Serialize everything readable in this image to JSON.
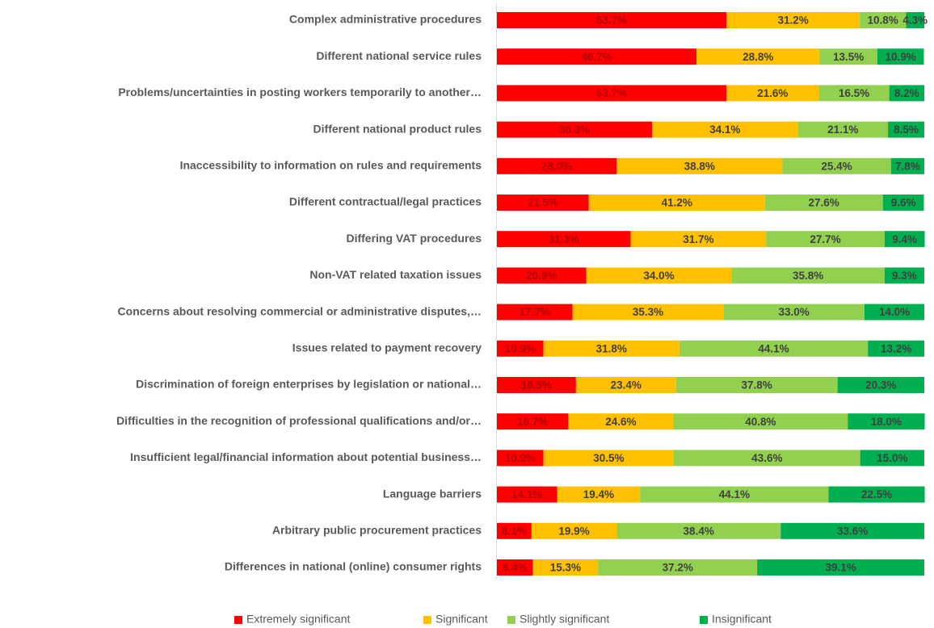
{
  "chart_data": {
    "type": "stacked-barh",
    "categories": [
      "Complex administrative procedures",
      "Different national service rules",
      "Problems/uncertainties in posting workers temporarily to another…",
      "Different national product rules",
      "Inaccessibility to information on rules and requirements",
      "Different contractual/legal practices",
      "Differing VAT procedures",
      "Non-VAT related taxation issues",
      "Concerns about resolving commercial or administrative disputes,…",
      "Issues related to payment recovery",
      "Discrimination of foreign enterprises by legislation or national…",
      "Difficulties in the recognition of professional qualifications and/or…",
      "Insufficient legal/financial information about potential business…",
      "Language barriers",
      "Arbitrary public procurement practices",
      "Differences in national (online) consumer rights"
    ],
    "series": [
      {
        "name": "Extremely significant",
        "color": "#ff0000",
        "values": [
          53.7,
          46.7,
          53.7,
          36.3,
          28.0,
          21.5,
          31.3,
          20.9,
          17.7,
          10.9,
          18.5,
          16.7,
          10.9,
          14.1,
          8.1,
          8.4
        ],
        "value_labels": [
          "53.7%",
          "46.7%",
          "53.7%",
          "36.3%",
          "28.0%",
          "21.5%",
          "31.3%",
          "20.9%",
          "17.7%",
          "10.9%",
          "18.5%",
          "16.7%",
          "10.9%",
          "14.1%",
          "8.1%",
          "8.4%"
        ]
      },
      {
        "name": "Significant",
        "color": "#ffc000",
        "values": [
          31.2,
          28.8,
          21.6,
          34.1,
          38.8,
          41.2,
          31.7,
          34.0,
          35.3,
          31.8,
          23.4,
          24.6,
          30.5,
          19.4,
          19.9,
          15.3
        ],
        "value_labels": [
          "31.2%",
          "28.8%",
          "21.6%",
          "34.1%",
          "38.8%",
          "41.2%",
          "31.7%",
          "34.0%",
          "35.3%",
          "31.8%",
          "23.4%",
          "24.6%",
          "30.5%",
          "19.4%",
          "19.9%",
          "15.3%"
        ]
      },
      {
        "name": "Slightly significant",
        "color": "#92d050",
        "values": [
          10.8,
          13.5,
          16.5,
          21.1,
          25.4,
          27.6,
          27.7,
          35.8,
          33.0,
          44.1,
          37.8,
          40.8,
          43.6,
          44.1,
          38.4,
          37.2
        ],
        "value_labels": [
          "10.8%",
          "13.5%",
          "16.5%",
          "21.1%",
          "25.4%",
          "27.6%",
          "27.7%",
          "35.8%",
          "33.0%",
          "44.1%",
          "37.8%",
          "40.8%",
          "43.6%",
          "44.1%",
          "38.4%",
          "37.2%"
        ]
      },
      {
        "name": "Insignificant",
        "color": "#00b050",
        "values": [
          4.3,
          10.9,
          8.2,
          8.5,
          7.8,
          9.6,
          9.4,
          9.3,
          14.0,
          13.2,
          20.3,
          18.0,
          15.0,
          22.5,
          33.6,
          39.1
        ],
        "value_labels": [
          "4.3%",
          "10.9%",
          "8.2%",
          "8.5%",
          "7.8%",
          "9.6%",
          "9.4%",
          "9.3%",
          "14.0%",
          "13.2%",
          "20.3%",
          "18.0%",
          "15.0%",
          "22.5%",
          "33.6%",
          "39.1%"
        ]
      }
    ],
    "xlim": [
      0,
      100
    ],
    "legend": "bottom"
  }
}
